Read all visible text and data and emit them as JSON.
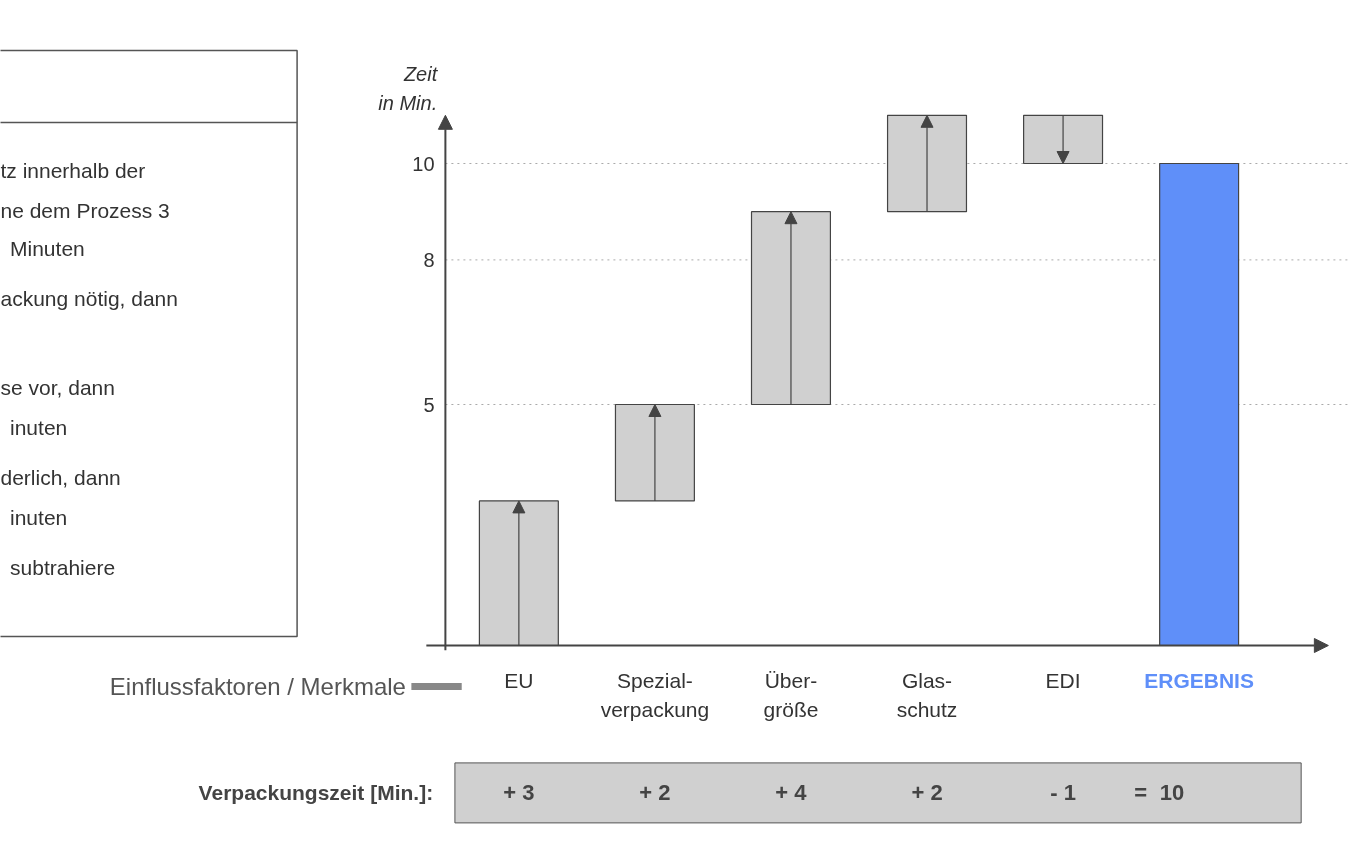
{
  "chart_data": [
    {
      "type": "other",
      "annotations": [
        "tz innerhalb der",
        "ne dem Prozess 3",
        "Minuten",
        "ackung nötig, dann",
        "se vor, dann",
        "inuten",
        "derlich, dann",
        "inuten",
        "subtrahiere"
      ]
    },
    {
      "type": "bar",
      "xlabel": "Einflussfaktoren / Merkmale",
      "ylabel": "Zeit\nin Min.",
      "categories": [
        "EU",
        "Spezial-\nverpackung",
        "Über-\ngröße",
        "Glas-\nschutz",
        "EDI",
        "ERGEBNIS"
      ],
      "values": [
        3,
        2,
        4,
        2,
        -1,
        10
      ],
      "base": [
        0,
        3,
        5,
        9,
        11,
        0
      ],
      "colors": [
        "#d0d0d0",
        "#d0d0d0",
        "#d0d0d0",
        "#d0d0d0",
        "#d0d0d0",
        "#5f8ff9"
      ],
      "value_labels": [
        "+ 3",
        "+ 2",
        "+ 4",
        "+ 2",
        "- 1",
        "10"
      ],
      "annotations": [
        "Verpackungszeit [Min.]:",
        "="
      ],
      "ylim": [
        0,
        11
      ],
      "yticks": [
        5,
        8,
        10
      ],
      "grid": "y"
    }
  ]
}
